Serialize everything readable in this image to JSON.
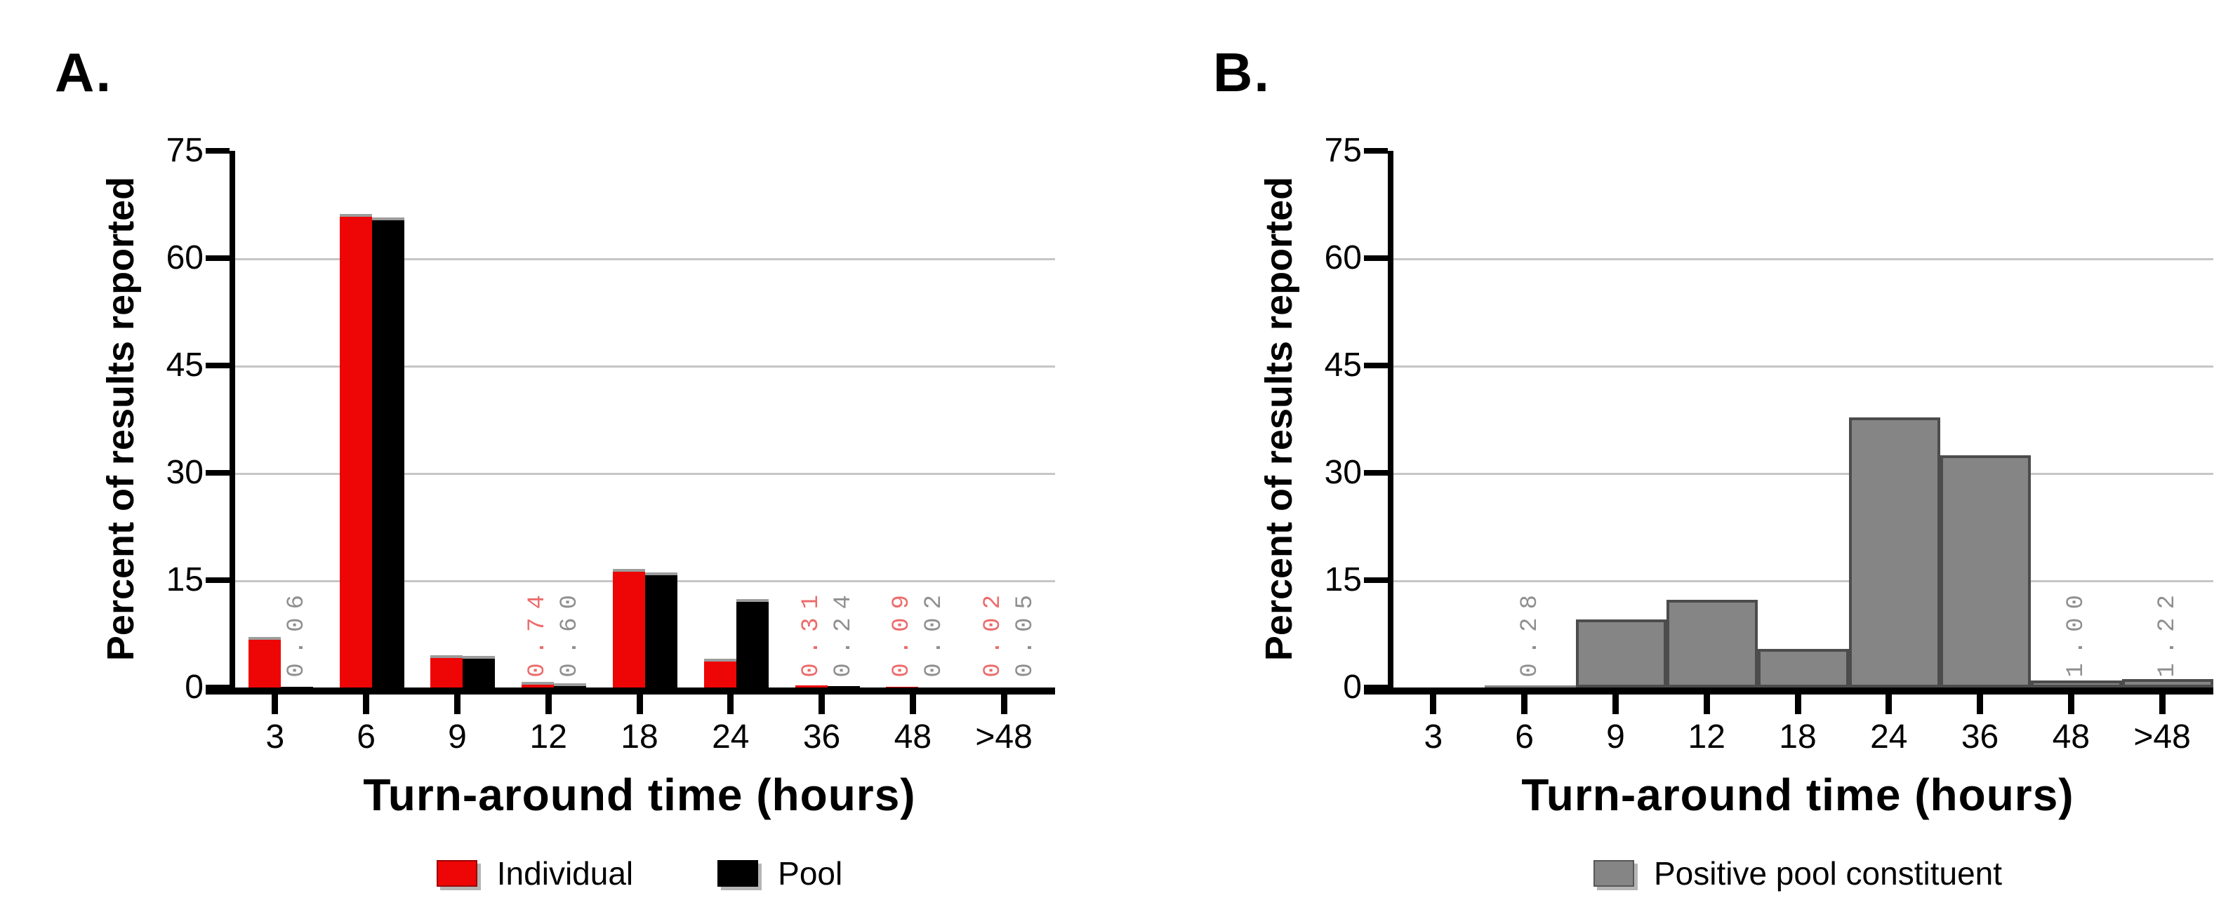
{
  "background": "#ffffff",
  "grid_color": "#c6c6c6",
  "axis_color": "#000000",
  "chart_data": [
    {
      "type": "bar",
      "panel_label": "A.",
      "title": "",
      "xlabel": "Turn-around time (hours)",
      "ylabel": "Percent of results reported",
      "ylim": [
        0,
        75
      ],
      "yticks": [
        0,
        15,
        30,
        45,
        60,
        75
      ],
      "gridlines": [
        15,
        30,
        45,
        60
      ],
      "grid": true,
      "legend_position": "bottom",
      "bar_style": "grouped",
      "categories": [
        "3",
        "6",
        "9",
        "12",
        "18",
        "24",
        "36",
        "48",
        ">48"
      ],
      "series": [
        {
          "name": "Individual",
          "color": "#ee0505",
          "values": [
            7.1,
            66.2,
            4.5,
            0.74,
            16.6,
            4.0,
            0.31,
            0.09,
            0.02
          ]
        },
        {
          "name": "Pool",
          "color": "#000000",
          "values": [
            0.06,
            65.7,
            4.4,
            0.6,
            16.1,
            12.4,
            0.24,
            0.02,
            0.05
          ]
        }
      ],
      "value_labels": [
        {
          "category": "3",
          "series": "Pool",
          "text": "0.06",
          "color": "#8f8f8f"
        },
        {
          "category": "12",
          "series": "Individual",
          "text": "0.74",
          "color": "#ec6b6b"
        },
        {
          "category": "12",
          "series": "Pool",
          "text": "0.60",
          "color": "#8f8f8f"
        },
        {
          "category": "36",
          "series": "Individual",
          "text": "0.31",
          "color": "#ec6b6b"
        },
        {
          "category": "36",
          "series": "Pool",
          "text": "0.24",
          "color": "#8f8f8f"
        },
        {
          "category": "48",
          "series": "Individual",
          "text": "0.09",
          "color": "#ec6b6b"
        },
        {
          "category": "48",
          "series": "Pool",
          "text": "0.02",
          "color": "#8f8f8f"
        },
        {
          "category": ">48",
          "series": "Individual",
          "text": "0.02",
          "color": "#ec6b6b"
        },
        {
          "category": ">48",
          "series": "Pool",
          "text": "0.05",
          "color": "#8f8f8f"
        }
      ]
    },
    {
      "type": "bar",
      "panel_label": "B.",
      "title": "",
      "xlabel": "Turn-around time (hours)",
      "ylabel": "Percent of results reported",
      "ylim": [
        0,
        75
      ],
      "yticks": [
        0,
        15,
        30,
        45,
        60,
        75
      ],
      "gridlines": [
        15,
        30,
        45,
        60
      ],
      "grid": true,
      "legend_position": "bottom",
      "bar_style": "histogram",
      "categories": [
        "3",
        "6",
        "9",
        "12",
        "18",
        "24",
        "36",
        "48",
        ">48"
      ],
      "series": [
        {
          "name": "Positive pool constituent",
          "color": "#858585",
          "values": [
            0,
            0.28,
            9.5,
            12.3,
            5.4,
            37.7,
            32.5,
            1.0,
            1.22
          ]
        }
      ],
      "value_labels": [
        {
          "category": "6",
          "series": "Positive pool constituent",
          "text": "0.28",
          "color": "#8f8f8f"
        },
        {
          "category": "48",
          "series": "Positive pool constituent",
          "text": "1.00",
          "color": "#8f8f8f"
        },
        {
          "category": ">48",
          "series": "Positive pool constituent",
          "text": "1.22",
          "color": "#8f8f8f"
        }
      ]
    }
  ]
}
